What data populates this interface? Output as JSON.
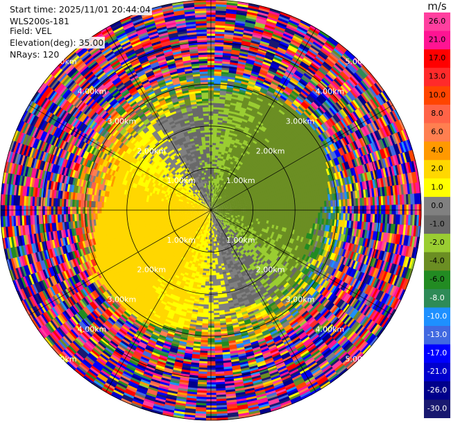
{
  "header": {
    "start_time": "Start time: 2025/11/01 20:44:04",
    "instrument": "WLS200s-181",
    "field": "Field: VEL",
    "elevation": "Elevation(deg): 35.00",
    "nrays": "NRays: 120"
  },
  "chart_data": {
    "type": "heatmap",
    "projection": "polar-ppi",
    "field": "VEL",
    "nrays": 120,
    "max_range_km": 5.0,
    "range_rings_km": [
      1.0,
      2.0,
      3.0,
      4.0,
      5.0
    ],
    "ring_labels": [
      "1.00km",
      "2.00km",
      "3.00km",
      "4.00km",
      "5.00km"
    ],
    "radials_every_deg": 30,
    "colorbar": {
      "unit": "m/s",
      "ticks": [
        "26.0",
        "21.0",
        "17.0",
        "13.0",
        "10.0",
        "8.0",
        "6.0",
        "4.0",
        "2.0",
        "1.0",
        "0.0",
        "-1.0",
        "-2.0",
        "-4.0",
        "-6.0",
        "-8.0",
        "-10.0",
        "-13.0",
        "-17.0",
        "-21.0",
        "-26.0",
        "-30.0"
      ],
      "bins": [
        {
          "from": 26,
          "to": 30,
          "color": "#ff3f9f"
        },
        {
          "from": 21,
          "to": 26,
          "color": "#ff1493"
        },
        {
          "from": 17,
          "to": 21,
          "color": "#ff0000"
        },
        {
          "from": 13,
          "to": 17,
          "color": "#ff2a2a"
        },
        {
          "from": 10,
          "to": 13,
          "color": "#ff4500"
        },
        {
          "from": 8,
          "to": 10,
          "color": "#ff6347"
        },
        {
          "from": 6,
          "to": 8,
          "color": "#ff7f50"
        },
        {
          "from": 4,
          "to": 6,
          "color": "#ff9900"
        },
        {
          "from": 2,
          "to": 4,
          "color": "#ffd700"
        },
        {
          "from": 1,
          "to": 2,
          "color": "#ffff00"
        },
        {
          "from": 0,
          "to": 1,
          "color": "#808080"
        },
        {
          "from": -1,
          "to": 0,
          "color": "#696969"
        },
        {
          "from": -2,
          "to": -1,
          "color": "#9acd32"
        },
        {
          "from": -4,
          "to": -2,
          "color": "#6b8e23"
        },
        {
          "from": -6,
          "to": -4,
          "color": "#228b22"
        },
        {
          "from": -8,
          "to": -6,
          "color": "#2e8b57"
        },
        {
          "from": -10,
          "to": -8,
          "color": "#1e90ff"
        },
        {
          "from": -13,
          "to": -10,
          "color": "#4169e1"
        },
        {
          "from": -17,
          "to": -13,
          "color": "#0000ff"
        },
        {
          "from": -21,
          "to": -17,
          "color": "#0000cd"
        },
        {
          "from": -26,
          "to": -21,
          "color": "#00008b"
        },
        {
          "from": -30,
          "to": -26,
          "color": "#191970"
        }
      ]
    }
  }
}
